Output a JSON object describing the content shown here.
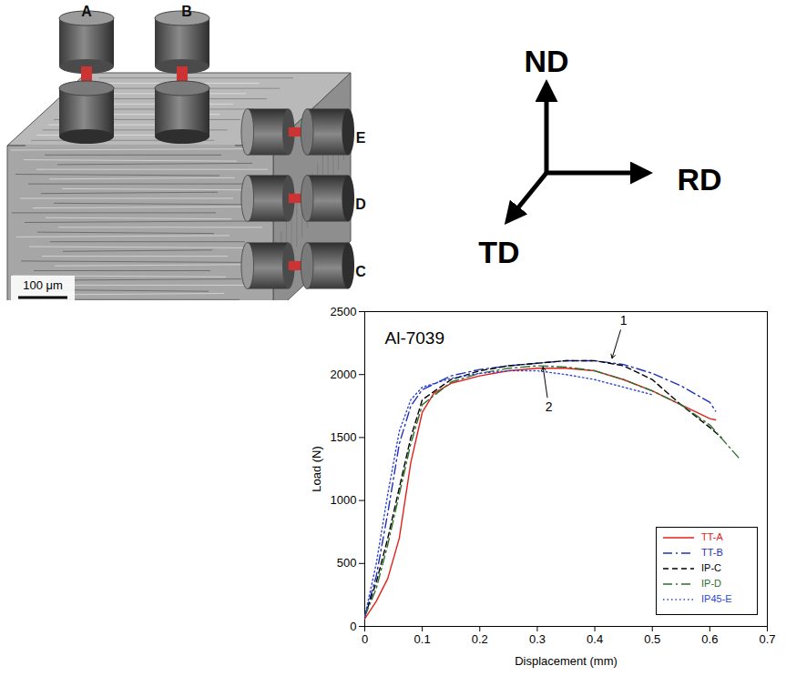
{
  "specimen_figure": {
    "specimens": [
      "A",
      "B",
      "C",
      "D",
      "E"
    ],
    "scale_bar": "100 μm"
  },
  "axes_diagram": {
    "labels": [
      "ND",
      "RD",
      "TD"
    ]
  },
  "chart_data": {
    "type": "line",
    "title": "Al-7039",
    "x_label": "Displacement (mm)",
    "y_label": "Load (N)",
    "xlim": [
      0,
      0.7
    ],
    "xticks": [
      0,
      0.1,
      0.2,
      0.3,
      0.4,
      0.5,
      0.6,
      0.7
    ],
    "ylim": [
      0,
      2500
    ],
    "yticks": [
      0,
      500,
      1000,
      1500,
      2000,
      2500
    ],
    "grid": false,
    "legend": "lower right",
    "series": [
      {
        "name": "TT-A",
        "color": "#e0201b",
        "line_style": "solid",
        "x": [
          0,
          0.02,
          0.04,
          0.06,
          0.08,
          0.1,
          0.12,
          0.15,
          0.2,
          0.25,
          0.3,
          0.35,
          0.4,
          0.45,
          0.5,
          0.55,
          0.6,
          0.61
        ],
        "values": [
          60,
          200,
          380,
          700,
          1300,
          1700,
          1850,
          1930,
          1990,
          2030,
          2050,
          2050,
          2030,
          1960,
          1870,
          1760,
          1650,
          1640
        ]
      },
      {
        "name": "TT-B",
        "color": "#1f2fbf",
        "line_style": "dashdot",
        "x": [
          0,
          0.02,
          0.04,
          0.06,
          0.08,
          0.1,
          0.15,
          0.2,
          0.25,
          0.3,
          0.35,
          0.4,
          0.45,
          0.5,
          0.55,
          0.6,
          0.61
        ],
        "values": [
          80,
          400,
          900,
          1450,
          1750,
          1880,
          1990,
          2040,
          2070,
          2090,
          2110,
          2110,
          2080,
          2010,
          1910,
          1780,
          1710
        ]
      },
      {
        "name": "IP-C",
        "color": "#000000",
        "line_style": "dashed",
        "x": [
          0,
          0.02,
          0.04,
          0.06,
          0.08,
          0.1,
          0.15,
          0.2,
          0.25,
          0.3,
          0.35,
          0.4,
          0.45,
          0.5,
          0.55,
          0.6,
          0.62
        ],
        "values": [
          80,
          350,
          700,
          1100,
          1500,
          1800,
          1960,
          2030,
          2070,
          2090,
          2110,
          2110,
          2070,
          1960,
          1760,
          1580,
          1500
        ]
      },
      {
        "name": "IP-D",
        "color": "#2d6e2d",
        "line_style": "dashdot",
        "x": [
          0,
          0.02,
          0.04,
          0.06,
          0.08,
          0.1,
          0.15,
          0.2,
          0.25,
          0.3,
          0.35,
          0.4,
          0.45,
          0.5,
          0.55,
          0.6,
          0.65
        ],
        "values": [
          80,
          300,
          650,
          1050,
          1450,
          1760,
          1940,
          2010,
          2050,
          2070,
          2060,
          2030,
          1960,
          1870,
          1760,
          1600,
          1340
        ]
      },
      {
        "name": "IP45-E",
        "color": "#2f45d8",
        "line_style": "dotted",
        "x": [
          0,
          0.02,
          0.04,
          0.06,
          0.08,
          0.1,
          0.15,
          0.2,
          0.25,
          0.3,
          0.35,
          0.4,
          0.45,
          0.5
        ],
        "values": [
          80,
          500,
          1050,
          1550,
          1800,
          1900,
          1970,
          2010,
          2030,
          2030,
          2000,
          1960,
          1900,
          1840
        ]
      }
    ],
    "annotations": [
      {
        "text": "1",
        "x": 0.43,
        "y": 2130,
        "text_x": 0.45,
        "text_y": 2430
      },
      {
        "text": "2",
        "x": 0.31,
        "y": 2060,
        "text_x": 0.32,
        "text_y": 1740
      }
    ]
  }
}
